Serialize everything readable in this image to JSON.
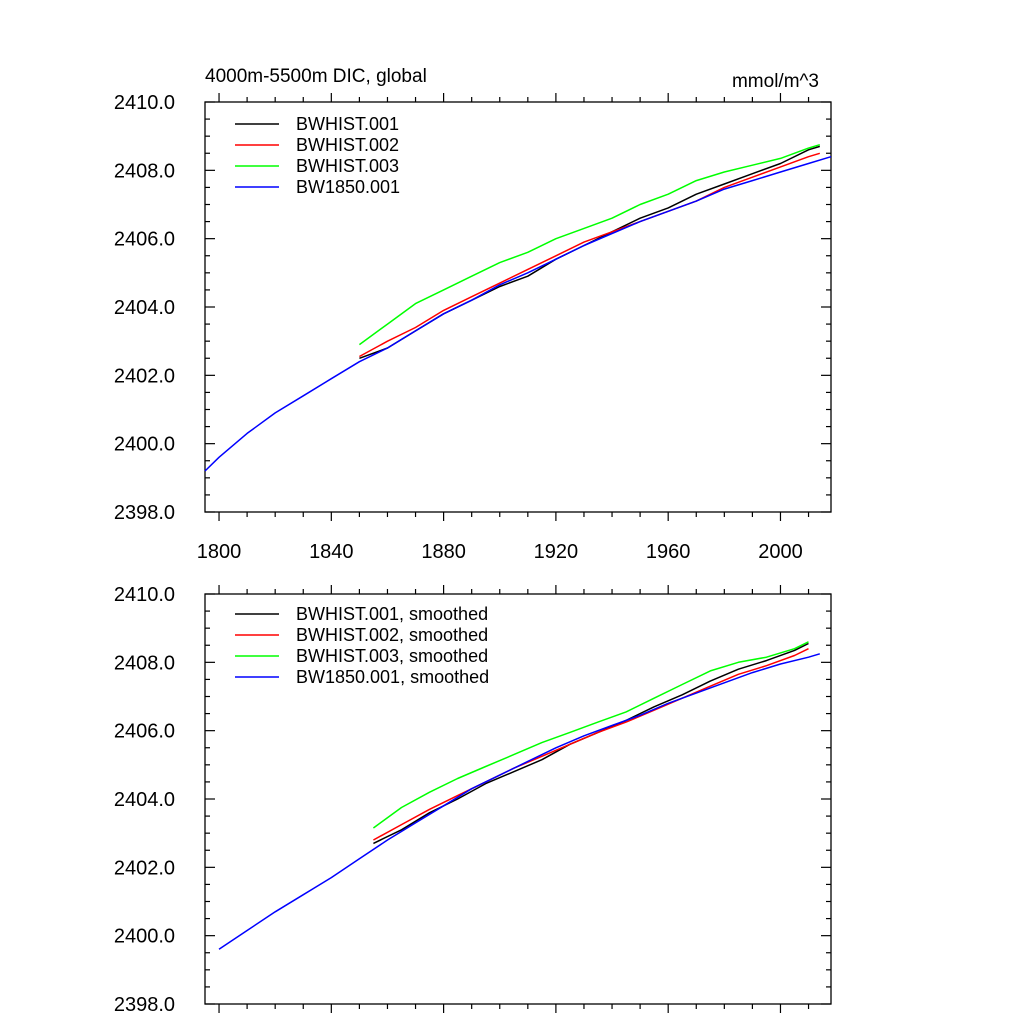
{
  "figure": {
    "title_left": "4000m-5500m DIC, global",
    "title_right": "mmol/m^3"
  },
  "chart_data": [
    {
      "type": "line",
      "title": "4000m-5500m DIC, global",
      "ylabel": "mmol/m^3",
      "xlabel": "",
      "xlim": [
        1795,
        2018
      ],
      "ylim": [
        2398,
        2410
      ],
      "xticks": [
        1800,
        1840,
        1880,
        1920,
        1960,
        2000
      ],
      "xticklabels": [
        "1800",
        "1840",
        "1880",
        "1920",
        "1960",
        "2000"
      ],
      "yticks": [
        2398,
        2400,
        2402,
        2404,
        2406,
        2408,
        2410
      ],
      "yticklabels": [
        "2398.0",
        "2400.0",
        "2402.0",
        "2404.0",
        "2406.0",
        "2408.0",
        "2410.0"
      ],
      "legend_position": "top-left",
      "series": [
        {
          "name": "BWHIST.001",
          "color": "#000000",
          "x": [
            1850,
            1860,
            1870,
            1880,
            1890,
            1900,
            1910,
            1920,
            1930,
            1940,
            1950,
            1960,
            1970,
            1980,
            1990,
            2000,
            2010,
            2014
          ],
          "y": [
            2402.5,
            2402.8,
            2403.3,
            2403.8,
            2404.2,
            2404.6,
            2404.9,
            2405.4,
            2405.8,
            2406.2,
            2406.6,
            2406.9,
            2407.3,
            2407.6,
            2407.9,
            2408.2,
            2408.6,
            2408.7
          ]
        },
        {
          "name": "BWHIST.002",
          "color": "#ff0000",
          "x": [
            1850,
            1860,
            1870,
            1880,
            1890,
            1900,
            1910,
            1920,
            1930,
            1940,
            1950,
            1960,
            1970,
            1980,
            1990,
            2000,
            2010,
            2014
          ],
          "y": [
            2402.55,
            2403.0,
            2403.4,
            2403.9,
            2404.3,
            2404.7,
            2405.1,
            2405.5,
            2405.9,
            2406.2,
            2406.5,
            2406.8,
            2407.1,
            2407.5,
            2407.8,
            2408.1,
            2408.4,
            2408.5
          ]
        },
        {
          "name": "BWHIST.003",
          "color": "#00ff00",
          "x": [
            1850,
            1860,
            1870,
            1880,
            1890,
            1900,
            1910,
            1920,
            1930,
            1940,
            1950,
            1960,
            1970,
            1980,
            1990,
            2000,
            2010,
            2014
          ],
          "y": [
            2402.9,
            2403.5,
            2404.1,
            2404.5,
            2404.9,
            2405.3,
            2405.6,
            2406.0,
            2406.3,
            2406.6,
            2407.0,
            2407.3,
            2407.7,
            2407.95,
            2408.15,
            2408.35,
            2408.65,
            2408.75
          ]
        },
        {
          "name": "BW1850.001",
          "color": "#0000ff",
          "x": [
            1795,
            1800,
            1810,
            1820,
            1830,
            1840,
            1850,
            1860,
            1870,
            1880,
            1890,
            1900,
            1910,
            1920,
            1930,
            1940,
            1950,
            1960,
            1970,
            1980,
            1990,
            2000,
            2010,
            2018
          ],
          "y": [
            2399.2,
            2399.6,
            2400.3,
            2400.9,
            2401.4,
            2401.9,
            2402.4,
            2402.8,
            2403.3,
            2403.8,
            2404.2,
            2404.65,
            2405.0,
            2405.4,
            2405.8,
            2406.15,
            2406.5,
            2406.8,
            2407.1,
            2407.45,
            2407.7,
            2407.95,
            2408.2,
            2408.4
          ]
        }
      ]
    },
    {
      "type": "line",
      "title": "",
      "xlabel": "",
      "ylabel": "",
      "xlim": [
        1795,
        2018
      ],
      "ylim": [
        2398,
        2410
      ],
      "xticks": [
        1800,
        1840,
        1880,
        1920,
        1960,
        2000
      ],
      "xticklabels": [],
      "yticks": [
        2398,
        2400,
        2402,
        2404,
        2406,
        2408,
        2410
      ],
      "yticklabels": [
        "2398.0",
        "2400.0",
        "2402.0",
        "2404.0",
        "2406.0",
        "2408.0",
        "2410.0"
      ],
      "legend_position": "top-left",
      "series": [
        {
          "name": "BWHIST.001, smoothed",
          "color": "#000000",
          "x": [
            1855,
            1865,
            1875,
            1885,
            1895,
            1905,
            1915,
            1925,
            1935,
            1945,
            1955,
            1965,
            1975,
            1985,
            1995,
            2005,
            2010
          ],
          "y": [
            2402.7,
            2403.1,
            2403.6,
            2404.0,
            2404.45,
            2404.8,
            2405.15,
            2405.6,
            2405.95,
            2406.3,
            2406.7,
            2407.05,
            2407.45,
            2407.8,
            2408.05,
            2408.35,
            2408.55
          ]
        },
        {
          "name": "BWHIST.002, smoothed",
          "color": "#ff0000",
          "x": [
            1855,
            1865,
            1875,
            1885,
            1895,
            1905,
            1915,
            1925,
            1935,
            1945,
            1955,
            1965,
            1975,
            1985,
            1995,
            2005,
            2010
          ],
          "y": [
            2402.8,
            2403.25,
            2403.7,
            2404.1,
            2404.5,
            2404.9,
            2405.25,
            2405.6,
            2405.95,
            2406.25,
            2406.6,
            2406.95,
            2407.3,
            2407.65,
            2407.9,
            2408.2,
            2408.4
          ]
        },
        {
          "name": "BWHIST.003, smoothed",
          "color": "#00ff00",
          "x": [
            1855,
            1865,
            1875,
            1885,
            1895,
            1905,
            1915,
            1925,
            1935,
            1945,
            1955,
            1965,
            1975,
            1985,
            1995,
            2005,
            2010
          ],
          "y": [
            2403.15,
            2403.75,
            2404.2,
            2404.6,
            2404.95,
            2405.3,
            2405.65,
            2405.95,
            2406.25,
            2406.55,
            2406.95,
            2407.35,
            2407.75,
            2408.0,
            2408.15,
            2408.4,
            2408.6
          ]
        },
        {
          "name": "BW1850.001, smoothed",
          "color": "#0000ff",
          "x": [
            1800,
            1810,
            1820,
            1830,
            1840,
            1850,
            1860,
            1870,
            1880,
            1890,
            1900,
            1910,
            1920,
            1930,
            1940,
            1950,
            1960,
            1970,
            1980,
            1990,
            2000,
            2010,
            2014
          ],
          "y": [
            2399.6,
            2400.15,
            2400.7,
            2401.2,
            2401.7,
            2402.25,
            2402.8,
            2403.3,
            2403.8,
            2404.3,
            2404.7,
            2405.1,
            2405.5,
            2405.85,
            2406.15,
            2406.45,
            2406.8,
            2407.1,
            2407.4,
            2407.7,
            2407.95,
            2408.15,
            2408.25
          ]
        }
      ]
    }
  ]
}
